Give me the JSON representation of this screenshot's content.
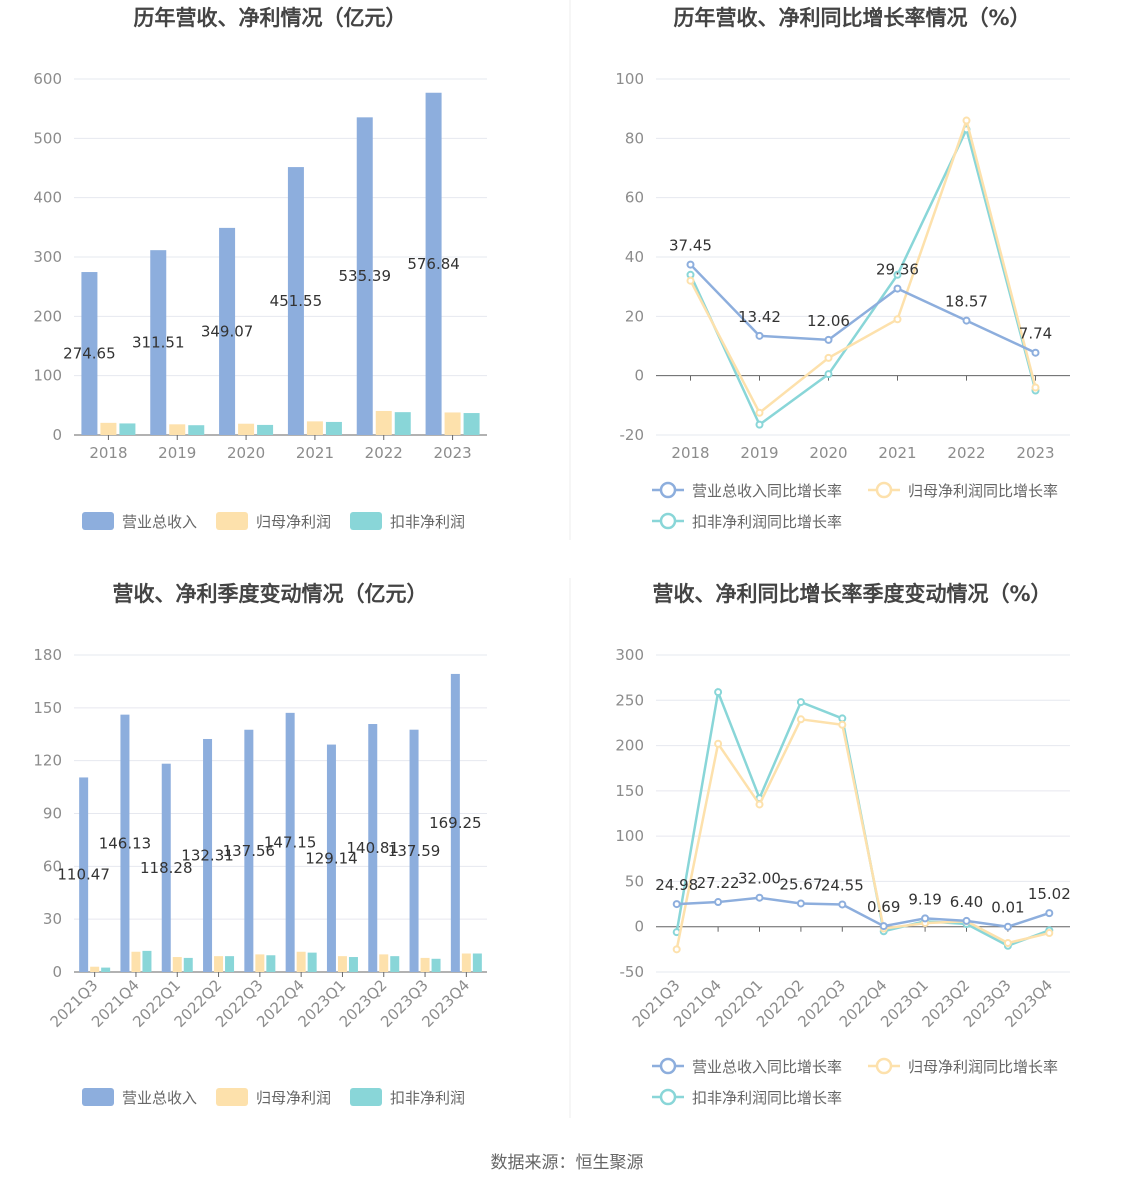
{
  "source": "数据来源：恒生聚源",
  "colors": {
    "revenue": "#8daedd",
    "net_profit": "#fde1ac",
    "deducted": "#89d6d8",
    "revenue_line": "#8daedd",
    "net_line": "#fde1ac",
    "deducted_line": "#89d6d8",
    "grid": "#e6e8ef",
    "axis": "#666666"
  },
  "chart_data": [
    {
      "type": "bar",
      "title": "历年营收、净利情况（亿元）",
      "categories": [
        "2018",
        "2019",
        "2020",
        "2021",
        "2022",
        "2023"
      ],
      "series": [
        {
          "name": "营业总收入",
          "values": [
            274.65,
            311.51,
            349.07,
            451.55,
            535.39,
            576.84
          ]
        },
        {
          "name": "归母净利润",
          "values": [
            20.5,
            18.0,
            19.0,
            23.0,
            40.5,
            38.0
          ]
        },
        {
          "name": "扣非净利润",
          "values": [
            19.5,
            16.5,
            17.0,
            22.0,
            38.5,
            37.0
          ]
        }
      ],
      "data_labels": [
        "274.65",
        "311.51",
        "349.07",
        "451.55",
        "535.39",
        "576.84"
      ],
      "yticks": [
        "0",
        "100",
        "200",
        "300",
        "400",
        "500",
        "600"
      ],
      "ylim": [
        0,
        600
      ],
      "legend": "bottom",
      "grid": true
    },
    {
      "type": "line",
      "title": "历年营收、净利同比增长率情况（%）",
      "categories": [
        "2018",
        "2019",
        "2020",
        "2021",
        "2022",
        "2023"
      ],
      "series": [
        {
          "name": "营业总收入同比增长率",
          "values": [
            37.45,
            13.42,
            12.06,
            29.36,
            18.57,
            7.74
          ]
        },
        {
          "name": "归母净利润同比增长率",
          "values": [
            32.0,
            -12.5,
            6.0,
            19.0,
            86.0,
            -4.0
          ]
        },
        {
          "name": "扣非净利润同比增长率",
          "values": [
            34.0,
            -16.5,
            0.5,
            34.0,
            83.0,
            -5.0
          ]
        }
      ],
      "data_labels": [
        "37.45",
        "13.42",
        "12.06",
        "29.36",
        "18.57",
        "7.74"
      ],
      "yticks": [
        "-20",
        "0",
        "20",
        "40",
        "60",
        "80",
        "100"
      ],
      "ylim": [
        -20,
        100
      ],
      "legend": "bottom",
      "grid": true
    },
    {
      "type": "bar",
      "title": "营收、净利季度变动情况（亿元）",
      "categories": [
        "2021Q3",
        "2021Q4",
        "2022Q1",
        "2022Q2",
        "2022Q3",
        "2022Q4",
        "2023Q1",
        "2023Q2",
        "2023Q3",
        "2023Q4"
      ],
      "series": [
        {
          "name": "营业总收入",
          "values": [
            110.47,
            146.13,
            118.28,
            132.31,
            137.56,
            147.15,
            129.14,
            140.81,
            137.59,
            169.25
          ]
        },
        {
          "name": "归母净利润",
          "values": [
            3.0,
            11.5,
            8.5,
            9.0,
            10.0,
            11.5,
            9.0,
            10.0,
            8.0,
            10.5
          ]
        },
        {
          "name": "扣非净利润",
          "values": [
            2.5,
            12.0,
            8.0,
            9.0,
            9.5,
            11.0,
            8.5,
            9.0,
            7.5,
            10.5
          ]
        }
      ],
      "data_labels": [
        "110.47",
        "146.13",
        "118.28",
        "132.31",
        "137.56",
        "147.15",
        "129.14",
        "140.81",
        "137.59",
        "169.25"
      ],
      "yticks": [
        "0",
        "30",
        "60",
        "90",
        "120",
        "150",
        "180"
      ],
      "ylim": [
        0,
        180
      ],
      "legend": "bottom",
      "grid": true
    },
    {
      "type": "line",
      "title": "营收、净利同比增长率季度变动情况（%）",
      "categories": [
        "2021Q3",
        "2021Q4",
        "2022Q1",
        "2022Q2",
        "2022Q3",
        "2022Q4",
        "2023Q1",
        "2023Q2",
        "2023Q3",
        "2023Q4"
      ],
      "series": [
        {
          "name": "营业总收入同比增长率",
          "values": [
            24.98,
            27.22,
            32.0,
            25.67,
            24.55,
            0.69,
            9.19,
            6.4,
            0.01,
            15.02
          ]
        },
        {
          "name": "归母净利润同比增长率",
          "values": [
            -25.0,
            202.0,
            135.0,
            229.0,
            223.0,
            -2.0,
            4.0,
            6.0,
            -18.0,
            -7.0
          ]
        },
        {
          "name": "扣非净利润同比增长率",
          "values": [
            -6.0,
            259.0,
            142.0,
            248.0,
            230.0,
            -5.0,
            6.0,
            3.0,
            -21.0,
            -4.0
          ]
        }
      ],
      "data_labels": [
        "24.98",
        "27.22",
        "32.00",
        "25.67",
        "24.55",
        "0.69",
        "9.19",
        "6.40",
        "0.01",
        "15.02"
      ],
      "yticks": [
        "-50",
        "0",
        "50",
        "100",
        "150",
        "200",
        "250",
        "300"
      ],
      "ylim": [
        -50,
        300
      ],
      "legend": "bottom",
      "grid": true
    }
  ]
}
